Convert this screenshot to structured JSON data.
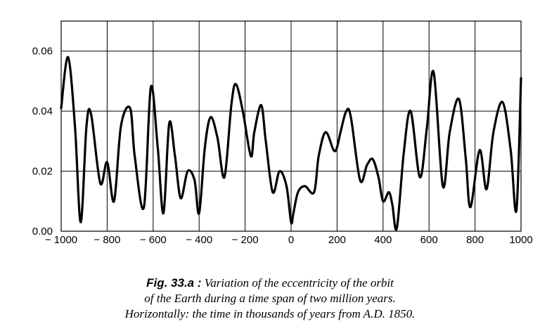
{
  "chart_data": {
    "type": "line",
    "title": "",
    "xlabel": "",
    "ylabel": "",
    "xlim": [
      -1000,
      1000
    ],
    "ylim": [
      0.0,
      0.07
    ],
    "x_ticks": [
      "− 1000",
      "− 800",
      "− 600",
      "− 400",
      "− 200",
      "0",
      "200",
      "400",
      "600",
      "800",
      "1000"
    ],
    "x_tick_values": [
      -1000,
      -800,
      -600,
      -400,
      -200,
      0,
      200,
      400,
      600,
      800,
      1000
    ],
    "y_ticks": [
      "0.00",
      "0.02",
      "0.04",
      "0.06"
    ],
    "y_tick_values": [
      0.0,
      0.02,
      0.04,
      0.06
    ],
    "grid": true,
    "series": [
      {
        "x": [
          -1000,
          -970,
          -940,
          -915,
          -890,
          -870,
          -830,
          -800,
          -770,
          -740,
          -700,
          -680,
          -640,
          -610,
          -580,
          -555,
          -530,
          -505,
          -480,
          -450,
          -420,
          -400,
          -375,
          -350,
          -320,
          -290,
          -260,
          -240,
          -210,
          -175,
          -160,
          -130,
          -110,
          -80,
          -50,
          -20,
          0,
          10,
          30,
          60,
          100,
          120,
          150,
          185,
          200,
          215,
          240,
          260,
          300,
          330,
          355,
          380,
          400,
          425,
          440,
          460,
          490,
          520,
          560,
          590,
          620,
          660,
          690,
          730,
          760,
          780,
          820,
          850,
          880,
          920,
          955,
          980,
          1000
        ],
        "y": [
          0.041,
          0.058,
          0.035,
          0.003,
          0.035,
          0.039,
          0.016,
          0.023,
          0.01,
          0.035,
          0.041,
          0.025,
          0.008,
          0.048,
          0.028,
          0.006,
          0.036,
          0.025,
          0.011,
          0.02,
          0.017,
          0.006,
          0.028,
          0.038,
          0.031,
          0.018,
          0.042,
          0.049,
          0.04,
          0.025,
          0.033,
          0.042,
          0.03,
          0.013,
          0.02,
          0.015,
          0.003,
          0.006,
          0.013,
          0.015,
          0.013,
          0.025,
          0.033,
          0.027,
          0.028,
          0.033,
          0.04,
          0.038,
          0.017,
          0.022,
          0.024,
          0.018,
          0.01,
          0.013,
          0.009,
          0.001,
          0.026,
          0.04,
          0.018,
          0.034,
          0.053,
          0.015,
          0.033,
          0.044,
          0.024,
          0.008,
          0.027,
          0.014,
          0.033,
          0.043,
          0.027,
          0.007,
          0.051
        ]
      }
    ]
  },
  "caption": {
    "line1_bold": "Fig. 33.a :",
    "line1_rest": "Variation of the eccentricity of the orbit",
    "line2": "of the Earth during a time span of two million years.",
    "line3": "Horizontally: the time in thousands of years from A.D. 1850."
  }
}
